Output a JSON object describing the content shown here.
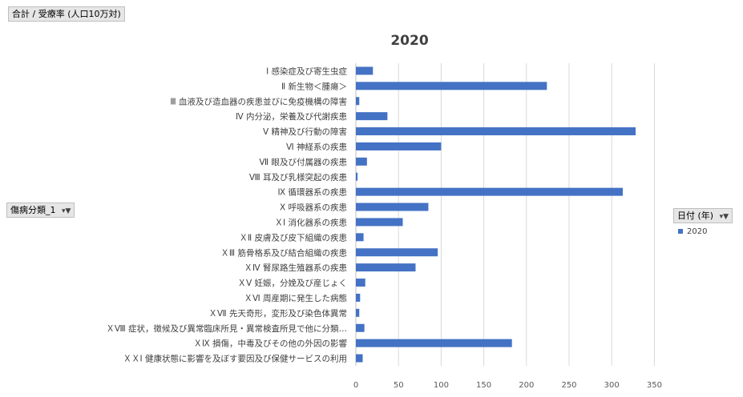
{
  "fields": {
    "value_field": "合計 / 受療率 (人口10万対)",
    "category_field": "傷病分類_1",
    "series_field": "日付 (年)",
    "dropdown_icon": "filter-dropdown-icon"
  },
  "legend": {
    "placement": "right",
    "entries": [
      "2020"
    ]
  },
  "chart_data": {
    "type": "bar",
    "orientation": "horizontal",
    "title": "2020",
    "xlabel": "",
    "ylabel": "",
    "xlim": [
      0,
      350
    ],
    "x_ticks": [
      0,
      50,
      100,
      150,
      200,
      250,
      300,
      350
    ],
    "grid": "vertical",
    "color": "#4472c4",
    "categories": [
      "Ⅰ 感染症及び寄生虫症",
      "Ⅱ 新生物＜腫瘍＞",
      "Ⅲ 血液及び造血器の疾患並びに免疫機構の障害",
      "Ⅳ 内分泌，栄養及び代謝疾患",
      "Ⅴ 精神及び行動の障害",
      "Ⅵ 神経系の疾患",
      "Ⅶ 眼及び付属器の疾患",
      "Ⅷ 耳及び乳様突起の疾患",
      "Ⅸ 循環器系の疾患",
      "Ⅹ 呼吸器系の疾患",
      "ＸⅠ 消化器系の疾患",
      "ＸⅡ 皮膚及び皮下組織の疾患",
      "ＸⅢ 筋骨格系及び結合組織の疾患",
      "ＸⅣ 腎尿路生殖器系の疾患",
      "ＸⅤ 妊娠，分娩及び産じょく",
      "ＸⅥ 周産期に発生した病態",
      "ＸⅦ 先天奇形，変形及び染色体異常",
      "ＸⅧ 症状，徴候及び異常臨床所見・異常検査所見で他に分類…",
      "ＸⅨ 損傷，中毒及びその他の外因の影響",
      "ＸＸⅠ 健康状態に影響を及ぼす要因及び保健サービスの利用"
    ],
    "series": [
      {
        "name": "2020",
        "values": [
          20,
          224,
          4,
          37,
          328,
          100,
          13,
          2,
          313,
          85,
          55,
          9,
          96,
          70,
          11,
          5,
          4,
          10,
          183,
          8
        ]
      }
    ]
  }
}
